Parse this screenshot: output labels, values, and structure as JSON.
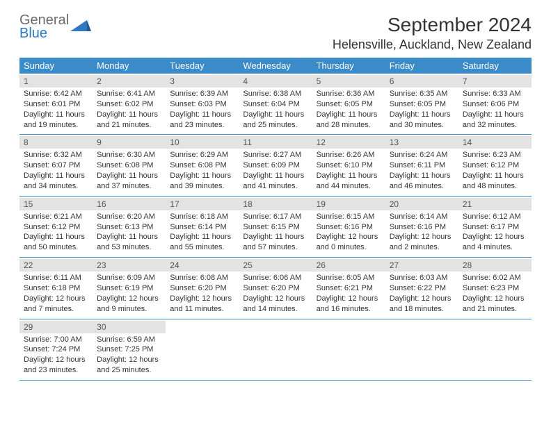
{
  "brand": {
    "line1": "General",
    "line2": "Blue",
    "icon_color": "#2f79c2"
  },
  "title": {
    "month_year": "September 2024",
    "location": "Helensville, Auckland, New Zealand"
  },
  "colors": {
    "header_bg": "#3b8bc9",
    "header_text": "#ffffff",
    "date_band": "#e3e3e3",
    "rule": "#3b8bc9",
    "text": "#333333"
  },
  "day_names": [
    "Sunday",
    "Monday",
    "Tuesday",
    "Wednesday",
    "Thursday",
    "Friday",
    "Saturday"
  ],
  "weeks": [
    [
      {
        "date": "1",
        "sunrise": "Sunrise: 6:42 AM",
        "sunset": "Sunset: 6:01 PM",
        "day1": "Daylight: 11 hours",
        "day2": "and 19 minutes."
      },
      {
        "date": "2",
        "sunrise": "Sunrise: 6:41 AM",
        "sunset": "Sunset: 6:02 PM",
        "day1": "Daylight: 11 hours",
        "day2": "and 21 minutes."
      },
      {
        "date": "3",
        "sunrise": "Sunrise: 6:39 AM",
        "sunset": "Sunset: 6:03 PM",
        "day1": "Daylight: 11 hours",
        "day2": "and 23 minutes."
      },
      {
        "date": "4",
        "sunrise": "Sunrise: 6:38 AM",
        "sunset": "Sunset: 6:04 PM",
        "day1": "Daylight: 11 hours",
        "day2": "and 25 minutes."
      },
      {
        "date": "5",
        "sunrise": "Sunrise: 6:36 AM",
        "sunset": "Sunset: 6:05 PM",
        "day1": "Daylight: 11 hours",
        "day2": "and 28 minutes."
      },
      {
        "date": "6",
        "sunrise": "Sunrise: 6:35 AM",
        "sunset": "Sunset: 6:05 PM",
        "day1": "Daylight: 11 hours",
        "day2": "and 30 minutes."
      },
      {
        "date": "7",
        "sunrise": "Sunrise: 6:33 AM",
        "sunset": "Sunset: 6:06 PM",
        "day1": "Daylight: 11 hours",
        "day2": "and 32 minutes."
      }
    ],
    [
      {
        "date": "8",
        "sunrise": "Sunrise: 6:32 AM",
        "sunset": "Sunset: 6:07 PM",
        "day1": "Daylight: 11 hours",
        "day2": "and 34 minutes."
      },
      {
        "date": "9",
        "sunrise": "Sunrise: 6:30 AM",
        "sunset": "Sunset: 6:08 PM",
        "day1": "Daylight: 11 hours",
        "day2": "and 37 minutes."
      },
      {
        "date": "10",
        "sunrise": "Sunrise: 6:29 AM",
        "sunset": "Sunset: 6:08 PM",
        "day1": "Daylight: 11 hours",
        "day2": "and 39 minutes."
      },
      {
        "date": "11",
        "sunrise": "Sunrise: 6:27 AM",
        "sunset": "Sunset: 6:09 PM",
        "day1": "Daylight: 11 hours",
        "day2": "and 41 minutes."
      },
      {
        "date": "12",
        "sunrise": "Sunrise: 6:26 AM",
        "sunset": "Sunset: 6:10 PM",
        "day1": "Daylight: 11 hours",
        "day2": "and 44 minutes."
      },
      {
        "date": "13",
        "sunrise": "Sunrise: 6:24 AM",
        "sunset": "Sunset: 6:11 PM",
        "day1": "Daylight: 11 hours",
        "day2": "and 46 minutes."
      },
      {
        "date": "14",
        "sunrise": "Sunrise: 6:23 AM",
        "sunset": "Sunset: 6:12 PM",
        "day1": "Daylight: 11 hours",
        "day2": "and 48 minutes."
      }
    ],
    [
      {
        "date": "15",
        "sunrise": "Sunrise: 6:21 AM",
        "sunset": "Sunset: 6:12 PM",
        "day1": "Daylight: 11 hours",
        "day2": "and 50 minutes."
      },
      {
        "date": "16",
        "sunrise": "Sunrise: 6:20 AM",
        "sunset": "Sunset: 6:13 PM",
        "day1": "Daylight: 11 hours",
        "day2": "and 53 minutes."
      },
      {
        "date": "17",
        "sunrise": "Sunrise: 6:18 AM",
        "sunset": "Sunset: 6:14 PM",
        "day1": "Daylight: 11 hours",
        "day2": "and 55 minutes."
      },
      {
        "date": "18",
        "sunrise": "Sunrise: 6:17 AM",
        "sunset": "Sunset: 6:15 PM",
        "day1": "Daylight: 11 hours",
        "day2": "and 57 minutes."
      },
      {
        "date": "19",
        "sunrise": "Sunrise: 6:15 AM",
        "sunset": "Sunset: 6:16 PM",
        "day1": "Daylight: 12 hours",
        "day2": "and 0 minutes."
      },
      {
        "date": "20",
        "sunrise": "Sunrise: 6:14 AM",
        "sunset": "Sunset: 6:16 PM",
        "day1": "Daylight: 12 hours",
        "day2": "and 2 minutes."
      },
      {
        "date": "21",
        "sunrise": "Sunrise: 6:12 AM",
        "sunset": "Sunset: 6:17 PM",
        "day1": "Daylight: 12 hours",
        "day2": "and 4 minutes."
      }
    ],
    [
      {
        "date": "22",
        "sunrise": "Sunrise: 6:11 AM",
        "sunset": "Sunset: 6:18 PM",
        "day1": "Daylight: 12 hours",
        "day2": "and 7 minutes."
      },
      {
        "date": "23",
        "sunrise": "Sunrise: 6:09 AM",
        "sunset": "Sunset: 6:19 PM",
        "day1": "Daylight: 12 hours",
        "day2": "and 9 minutes."
      },
      {
        "date": "24",
        "sunrise": "Sunrise: 6:08 AM",
        "sunset": "Sunset: 6:20 PM",
        "day1": "Daylight: 12 hours",
        "day2": "and 11 minutes."
      },
      {
        "date": "25",
        "sunrise": "Sunrise: 6:06 AM",
        "sunset": "Sunset: 6:20 PM",
        "day1": "Daylight: 12 hours",
        "day2": "and 14 minutes."
      },
      {
        "date": "26",
        "sunrise": "Sunrise: 6:05 AM",
        "sunset": "Sunset: 6:21 PM",
        "day1": "Daylight: 12 hours",
        "day2": "and 16 minutes."
      },
      {
        "date": "27",
        "sunrise": "Sunrise: 6:03 AM",
        "sunset": "Sunset: 6:22 PM",
        "day1": "Daylight: 12 hours",
        "day2": "and 18 minutes."
      },
      {
        "date": "28",
        "sunrise": "Sunrise: 6:02 AM",
        "sunset": "Sunset: 6:23 PM",
        "day1": "Daylight: 12 hours",
        "day2": "and 21 minutes."
      }
    ],
    [
      {
        "date": "29",
        "sunrise": "Sunrise: 7:00 AM",
        "sunset": "Sunset: 7:24 PM",
        "day1": "Daylight: 12 hours",
        "day2": "and 23 minutes."
      },
      {
        "date": "30",
        "sunrise": "Sunrise: 6:59 AM",
        "sunset": "Sunset: 7:25 PM",
        "day1": "Daylight: 12 hours",
        "day2": "and 25 minutes."
      },
      null,
      null,
      null,
      null,
      null
    ]
  ]
}
